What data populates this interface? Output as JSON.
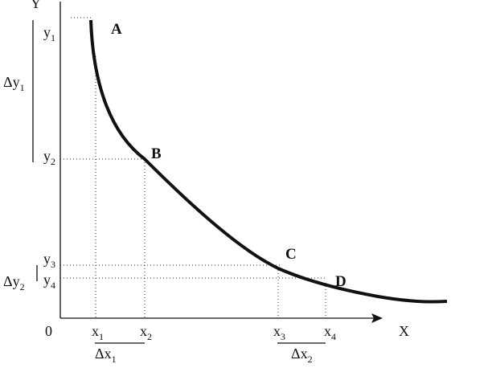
{
  "axes": {
    "y_label": "Y",
    "x_label": "X",
    "origin": "0"
  },
  "y_ticks": [
    {
      "base": "y",
      "sub": "1"
    },
    {
      "base": "y",
      "sub": "2"
    },
    {
      "base": "y",
      "sub": "3"
    },
    {
      "base": "y",
      "sub": "4"
    }
  ],
  "x_ticks": [
    {
      "base": "x",
      "sub": "1"
    },
    {
      "base": "x",
      "sub": "2"
    },
    {
      "base": "x",
      "sub": "3"
    },
    {
      "base": "x",
      "sub": "4"
    }
  ],
  "changes": {
    "dy1": {
      "base": "Δy",
      "sub": "1"
    },
    "dy2": {
      "base": "Δy",
      "sub": "2"
    },
    "dx1": {
      "base": "Δx",
      "sub": "1"
    },
    "dx2": {
      "base": "Δx",
      "sub": "2"
    }
  },
  "points": [
    "A",
    "B",
    "C",
    "D"
  ]
}
